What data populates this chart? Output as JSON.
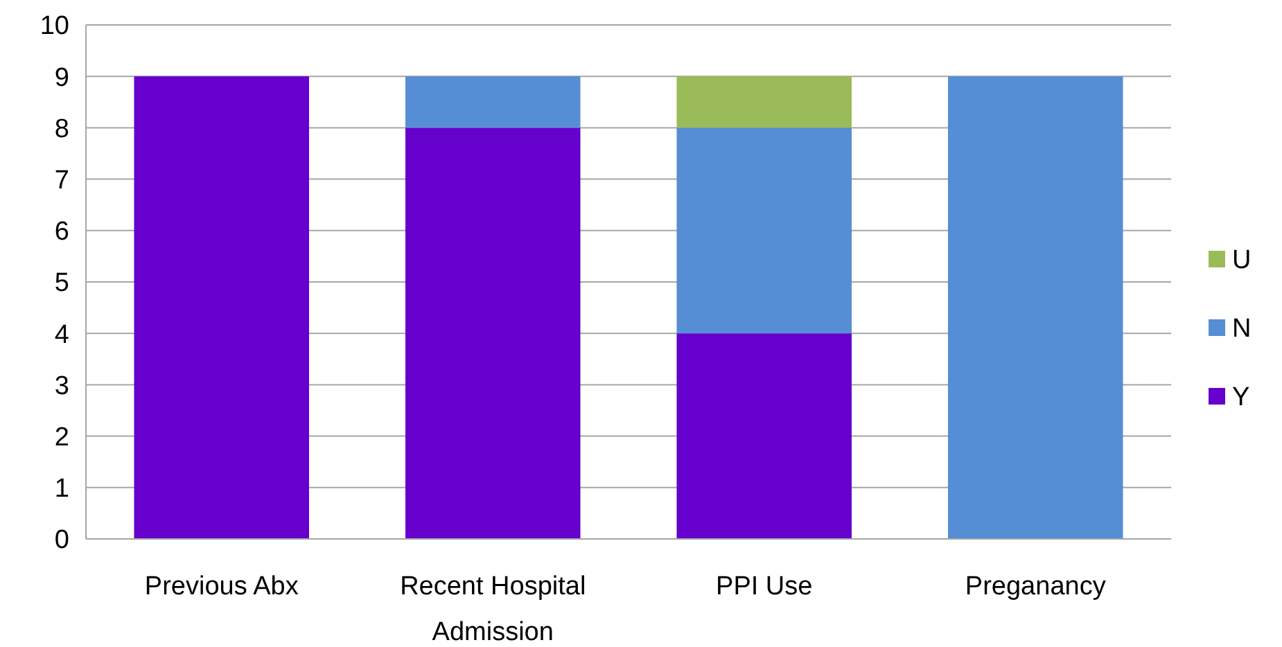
{
  "chart_data": {
    "type": "bar",
    "stacked": true,
    "categories": [
      "Previous Abx",
      "Recent Hospital Admission",
      "PPI Use",
      "Preganancy"
    ],
    "series": [
      {
        "name": "Y",
        "color": "#6600cc",
        "values": [
          9,
          8,
          4,
          0
        ]
      },
      {
        "name": "N",
        "color": "#558ed5",
        "values": [
          0,
          1,
          4,
          9
        ]
      },
      {
        "name": "U",
        "color": "#9bbb59",
        "values": [
          0,
          0,
          1,
          0
        ]
      }
    ],
    "ylim": [
      0,
      10
    ],
    "yticks": [
      0,
      1,
      2,
      3,
      4,
      5,
      6,
      7,
      8,
      9,
      10
    ],
    "grid": "y",
    "legend": "right"
  }
}
